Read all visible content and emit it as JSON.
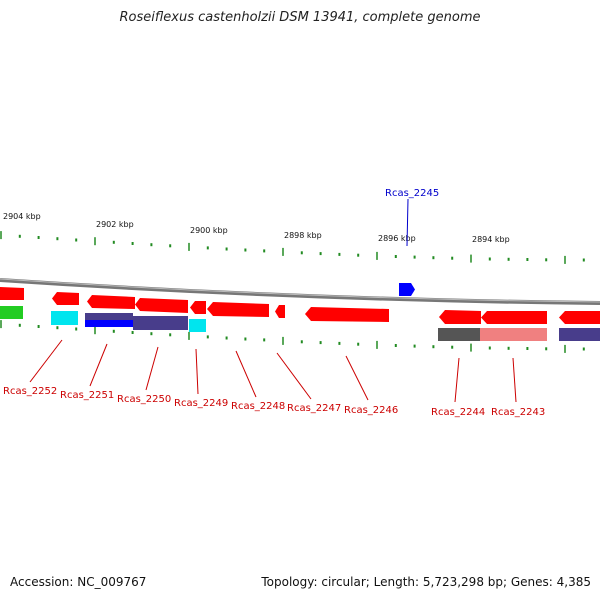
{
  "title": "Roseiflexus castenholzii DSM 13941, complete genome",
  "footer": {
    "accession": "Accession: NC_009767",
    "summary": "Topology: circular; Length: 5,723,298 bp; Genes: 4,385"
  },
  "ticks": [
    {
      "label": "2904 kbp"
    },
    {
      "label": "2902 kbp"
    },
    {
      "label": "2900 kbp"
    },
    {
      "label": "2898 kbp"
    },
    {
      "label": "2896 kbp"
    },
    {
      "label": "2894 kbp"
    }
  ],
  "gene_labels": [
    {
      "text": "Rcas_2252",
      "color": "#cc0000"
    },
    {
      "text": "Rcas_2251",
      "color": "#cc0000"
    },
    {
      "text": "Rcas_2250",
      "color": "#cc0000"
    },
    {
      "text": "Rcas_2249",
      "color": "#cc0000"
    },
    {
      "text": "Rcas_2248",
      "color": "#cc0000"
    },
    {
      "text": "Rcas_2247",
      "color": "#cc0000"
    },
    {
      "text": "Rcas_2246",
      "color": "#cc0000"
    },
    {
      "text": "Rcas_2245",
      "color": "#0000cc"
    },
    {
      "text": "Rcas_2244",
      "color": "#cc0000"
    },
    {
      "text": "Rcas_2243",
      "color": "#cc0000"
    }
  ],
  "colors": {
    "cds": "#ff0000",
    "forward_cds": "#0000ff",
    "backbone": "#888888",
    "ticks": "#228b22",
    "cog_cyan": "#00e5ee",
    "cog_green": "#22cc22",
    "cog_purple": "#483d8b",
    "cog_pink": "#f08080",
    "cog_gray": "#555555"
  }
}
